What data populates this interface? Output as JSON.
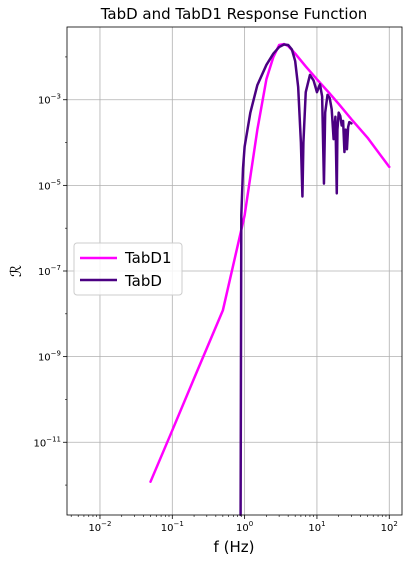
{
  "chart_data": {
    "type": "line",
    "title": "TabD and TabD1 Response Function",
    "xlabel": "f (Hz)",
    "ylabel": "ℛ",
    "xscale": "log",
    "yscale": "log",
    "xlim": [
      0.0035,
      150
    ],
    "ylim": [
      2e-13,
      0.05
    ],
    "grid": true,
    "legend_position": "center-left",
    "x_ticks": [
      {
        "value": 0.01,
        "base": "10",
        "exp": "−2"
      },
      {
        "value": 0.1,
        "base": "10",
        "exp": "−1"
      },
      {
        "value": 1,
        "base": "10",
        "exp": "0"
      },
      {
        "value": 10,
        "base": "10",
        "exp": "1"
      },
      {
        "value": 100,
        "base": "10",
        "exp": "2"
      }
    ],
    "y_ticks": [
      {
        "value": 1e-11,
        "base": "10",
        "exp": "−11"
      },
      {
        "value": 1e-09,
        "base": "10",
        "exp": "−9"
      },
      {
        "value": 1e-07,
        "base": "10",
        "exp": "−7"
      },
      {
        "value": 1e-05,
        "base": "10",
        "exp": "−5"
      },
      {
        "value": 0.001,
        "base": "10",
        "exp": "−3"
      }
    ],
    "series": [
      {
        "name": "TabD1",
        "color": "#ff00ff",
        "x": [
          0.05,
          0.1,
          0.2,
          0.5,
          1,
          1.5,
          2,
          2.5,
          3,
          3.5,
          4,
          5,
          7,
          10,
          15,
          20,
          30,
          50,
          100
        ],
        "y": [
          1.2e-12,
          1.9e-11,
          3.1e-10,
          1.2e-08,
          2e-06,
          0.0002,
          0.003,
          0.01,
          0.019,
          0.02,
          0.018,
          0.012,
          0.006,
          0.003,
          0.0014,
          0.0008,
          0.00035,
          0.00013,
          2.7e-05
        ]
      },
      {
        "name": "TabD",
        "color": "#4b0082",
        "x": [
          0.88,
          0.9,
          0.95,
          1.0,
          1.2,
          1.5,
          2,
          2.5,
          3,
          3.5,
          4,
          4.5,
          5,
          5.5,
          6,
          6.3,
          6.5,
          7,
          8,
          9,
          10,
          11,
          11.8,
          12.5,
          13,
          14,
          15,
          16,
          17,
          18,
          18.8,
          19.2,
          20,
          21,
          22,
          23,
          24,
          25,
          26,
          27,
          28,
          30
        ],
        "y": [
          2e-13,
          2e-06,
          2.5e-05,
          8e-05,
          0.0005,
          0.0022,
          0.0065,
          0.012,
          0.017,
          0.0195,
          0.019,
          0.015,
          0.008,
          0.002,
          0.0001,
          5.5e-06,
          0.0001,
          0.0015,
          0.0038,
          0.0028,
          0.0015,
          0.0023,
          0.0012,
          1.1e-05,
          0.0005,
          0.0013,
          0.0011,
          0.0006,
          0.00012,
          0.0004,
          6.5e-06,
          0.0002,
          0.0005,
          0.00042,
          0.00025,
          0.00032,
          6e-05,
          0.0002,
          7e-05,
          0.00023,
          0.0003,
          0.00028
        ]
      }
    ]
  }
}
